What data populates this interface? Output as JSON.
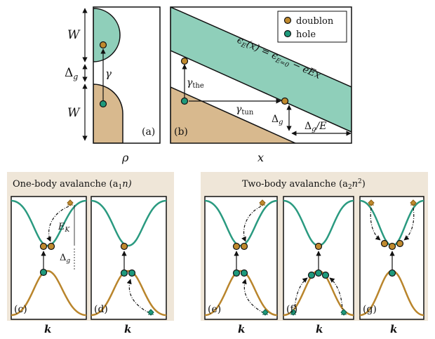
{
  "colors": {
    "band": "#8fcfba",
    "tan": "#d8b98e",
    "doublon": "#c08a2e",
    "hole": "#1e9a7c",
    "upper_curve": "#2a9a80",
    "lower_curve": "#b9852c",
    "panel_bg": "#efe6d8",
    "outline": "#111111"
  },
  "panel_a": {
    "label": "(a)",
    "w_top": "W",
    "w_bottom": "W",
    "delta_g": "Δ",
    "delta_g_sub": "g",
    "gamma": "γ",
    "axis": "ρ"
  },
  "panel_b": {
    "label": "(b)",
    "legend": [
      {
        "name": "doublon",
        "icon": "doublon-circle"
      },
      {
        "name": "hole",
        "icon": "hole-circle"
      }
    ],
    "equation": "ϵ_E(x) = ϵ_{E=0} − eEx",
    "gamma_the": "γ",
    "gamma_the_sub": "the",
    "gamma_tun": "γ",
    "gamma_tun_sub": "tun",
    "delta_g": "Δ",
    "delta_g_sub": "g",
    "delta_over_e": "/E",
    "axis": "x"
  },
  "one_body": {
    "title": "One-body avalanche (a",
    "title_sub": "1",
    "title_tail": "n)",
    "panel_c": {
      "label": "(c)",
      "ek": "E",
      "ek_sub": "K",
      "dg": "Δ",
      "dg_sub": "g",
      "axis": "k"
    },
    "panel_d": {
      "label": "(d)",
      "axis": "k"
    }
  },
  "two_body": {
    "title": "Two-body avalanche (a",
    "title_sub": "2",
    "title_mid": "n",
    "title_sup": "2",
    "title_tail": ")",
    "panel_e": {
      "label": "(e)",
      "axis": "k"
    },
    "panel_f": {
      "label": "(f)",
      "axis": "k"
    },
    "panel_g": {
      "label": "(g)",
      "axis": "k"
    }
  }
}
